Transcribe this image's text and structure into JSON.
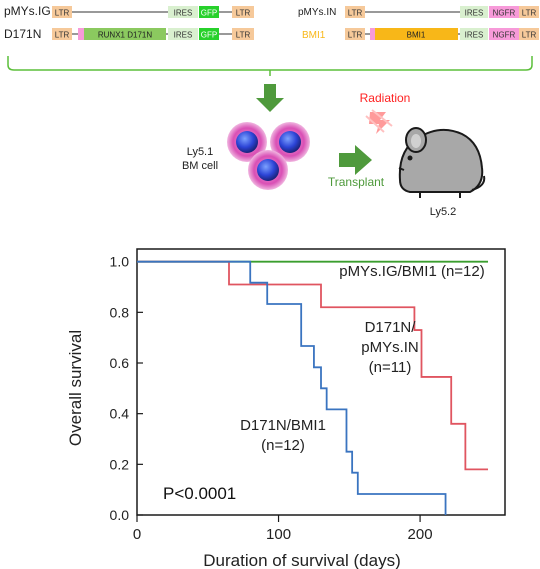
{
  "constructs": {
    "left": [
      {
        "name": "pMYs.IG",
        "segments": [
          "LTR",
          "IRES",
          "GFP",
          "LTR"
        ]
      },
      {
        "name": "D171N",
        "segments": [
          "LTR",
          "RUNX1 D171N",
          "IRES",
          "GFP",
          "LTR"
        ]
      }
    ],
    "right": [
      {
        "name": "pMYs.IN",
        "segments": [
          "LTR",
          "IRES",
          "NGFR",
          "LTR"
        ]
      },
      {
        "name": "BMI1",
        "segments": [
          "LTR",
          "BMI1",
          "IRES",
          "NGFR",
          "LTR"
        ]
      }
    ]
  },
  "illustration": {
    "donor_label_line1": "Ly5.1",
    "donor_label_line2": "BM cell",
    "radiation_label": "Radiation",
    "transplant_label": "Transplant",
    "recipient_label": "Ly5.2"
  },
  "colors": {
    "ltr": "#f6c99a",
    "ires": "#d9f0cf",
    "gfp": "#27d12b",
    "runx1": "#8bc95f",
    "ngfr": "#f79ad9",
    "bmi1": "#f8b718",
    "bracket": "#5cbf3a",
    "arrow": "#4f9a3c",
    "radiation": "#ff2222",
    "transplant": "#4f9a3c",
    "curve_control": "#3a9e2e",
    "curve_d171n_in": "#e05560",
    "curve_d171n_bmi1": "#3a74c0"
  },
  "chart_data": {
    "type": "line",
    "step": true,
    "xlabel": "Duration of survival (days)",
    "ylabel": "Overall survival",
    "xlim": [
      0,
      260
    ],
    "ylim": [
      0,
      1.05
    ],
    "xticks": [
      0,
      100,
      200
    ],
    "yticks": [
      0.0,
      0.2,
      0.4,
      0.6,
      0.8,
      1.0
    ],
    "ytick_labels": [
      "0.0",
      "0.2",
      "0.4",
      "0.6",
      "0.8",
      "1.0"
    ],
    "annotation": "P<0.0001",
    "series": [
      {
        "name": "pMYs.IG/BMI1 (n=12)",
        "label_lines": [
          "pMYs.IG/BMI1 (n=12)"
        ],
        "x": [
          0,
          248
        ],
        "y": [
          1.0,
          1.0
        ]
      },
      {
        "name": "D171N/pMYs.IN (n=11)",
        "label_lines": [
          "D171N/",
          "pMYs.IN",
          "(n=11)"
        ],
        "x": [
          0,
          65,
          130,
          196,
          201,
          222,
          232,
          248
        ],
        "y": [
          1.0,
          0.91,
          0.82,
          0.73,
          0.545,
          0.36,
          0.18,
          0.18
        ]
      },
      {
        "name": "D171N/BMI1 (n=12)",
        "label_lines": [
          "D171N/BMI1",
          "(n=12)"
        ],
        "x": [
          0,
          80,
          92,
          116,
          125,
          130,
          134,
          148,
          152,
          156,
          180,
          218
        ],
        "y": [
          1.0,
          0.917,
          0.833,
          0.667,
          0.583,
          0.5,
          0.417,
          0.25,
          0.167,
          0.083,
          0.083,
          0.0
        ]
      }
    ]
  }
}
